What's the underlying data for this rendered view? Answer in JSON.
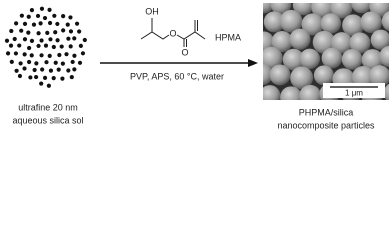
{
  "left_label": {
    "line1": "ultrafine 20 nm",
    "line2": "aqueous silica sol"
  },
  "monomer": {
    "atoms": [
      "OH",
      "O",
      "O"
    ],
    "name": "HPMA"
  },
  "conditions": "PVP, APS, 60 °C, water",
  "scale_bar": "1 μm",
  "right_label": {
    "line1": "PHPMA/silica",
    "line2": "nanocomposite particles"
  }
}
